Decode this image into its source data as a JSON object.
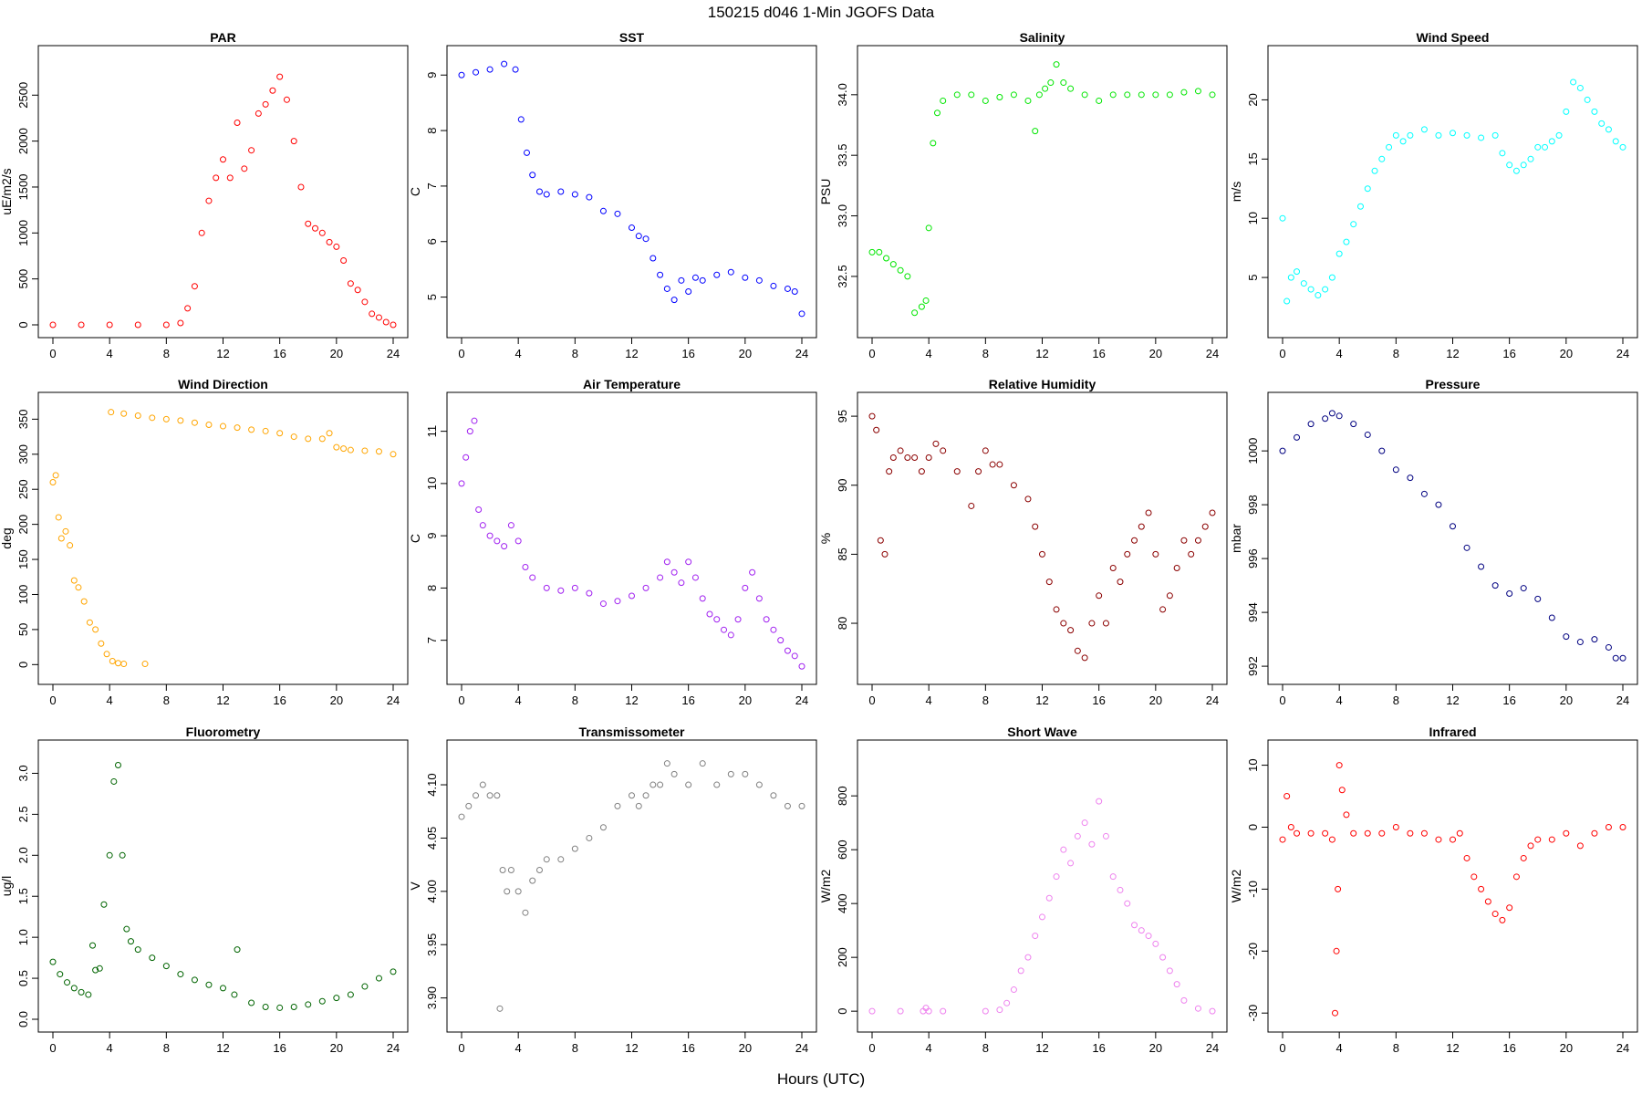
{
  "figure": {
    "title": "150215   d046   1-Min  JGOFS Data",
    "xlabel": "Hours (UTC)"
  },
  "chart_data": [
    {
      "type": "scatter",
      "title": "PAR",
      "ylabel": "uE/m2/s",
      "color": "#ff0000",
      "xlim": [
        0,
        24
      ],
      "ylim": [
        0,
        2900
      ],
      "xticks": [
        0,
        4,
        8,
        12,
        16,
        20,
        24
      ],
      "xtick_labels": [
        "0",
        "4",
        "8",
        "12",
        "16",
        "20",
        "24"
      ],
      "yticks": [
        0,
        500,
        1000,
        1500,
        2000,
        2500
      ],
      "ytick_labels": [
        "0",
        "500",
        "1000",
        "1500",
        "2000",
        "2500"
      ],
      "x": [
        0,
        2,
        4,
        6,
        8,
        9,
        9.5,
        10,
        10.5,
        11,
        11.5,
        12,
        12.5,
        13,
        13.5,
        14,
        14.5,
        15,
        15.5,
        16,
        16.5,
        17,
        17.5,
        18,
        18.5,
        19,
        19.5,
        20,
        20.5,
        21,
        21.5,
        22,
        22.5,
        23,
        23.5,
        24
      ],
      "y": [
        0,
        0,
        0,
        0,
        0,
        20,
        180,
        420,
        1000,
        1350,
        1600,
        1800,
        1600,
        2200,
        1700,
        1900,
        2300,
        2400,
        2550,
        2700,
        2450,
        2000,
        1500,
        1100,
        1050,
        1000,
        900,
        850,
        700,
        450,
        380,
        250,
        120,
        80,
        30,
        0
      ]
    },
    {
      "type": "scatter",
      "title": "SST",
      "ylabel": "C",
      "color": "#0000ff",
      "xlim": [
        0,
        24
      ],
      "ylim": [
        4.5,
        9.3
      ],
      "xticks": [
        0,
        4,
        8,
        12,
        16,
        20,
        24
      ],
      "xtick_labels": [
        "0",
        "4",
        "8",
        "12",
        "16",
        "20",
        "24"
      ],
      "yticks": [
        5,
        6,
        7,
        8,
        9
      ],
      "ytick_labels": [
        "5",
        "6",
        "7",
        "8",
        "9"
      ],
      "x": [
        0,
        1,
        2,
        3,
        3.8,
        4.2,
        4.6,
        5,
        5.5,
        6,
        7,
        8,
        9,
        10,
        11,
        12,
        12.5,
        13,
        13.5,
        14,
        14.5,
        15,
        15.5,
        16,
        16.5,
        17,
        18,
        19,
        20,
        21,
        22,
        23,
        23.5,
        24
      ],
      "y": [
        9.0,
        9.05,
        9.1,
        9.2,
        9.1,
        8.2,
        7.6,
        7.2,
        6.9,
        6.85,
        6.9,
        6.85,
        6.8,
        6.55,
        6.5,
        6.25,
        6.1,
        6.05,
        5.7,
        5.4,
        5.15,
        4.95,
        5.3,
        5.1,
        5.35,
        5.3,
        5.4,
        5.45,
        5.35,
        5.3,
        5.2,
        5.15,
        5.1,
        4.7
      ]
    },
    {
      "type": "scatter",
      "title": "Salinity",
      "ylabel": "PSU",
      "color": "#00e600",
      "xlim": [
        0,
        24
      ],
      "ylim": [
        32.1,
        34.3
      ],
      "xticks": [
        0,
        4,
        8,
        12,
        16,
        20,
        24
      ],
      "xtick_labels": [
        "0",
        "4",
        "8",
        "12",
        "16",
        "20",
        "24"
      ],
      "yticks": [
        32.5,
        33.0,
        33.5,
        34.0
      ],
      "ytick_labels": [
        "32.5",
        "33.0",
        "33.5",
        "34.0"
      ],
      "x": [
        0,
        0.5,
        1,
        1.5,
        2,
        2.5,
        3,
        3.5,
        3.8,
        4,
        4.3,
        4.6,
        5,
        6,
        7,
        8,
        9,
        10,
        11,
        11.5,
        11.8,
        12.2,
        12.6,
        13,
        13.5,
        14,
        15,
        16,
        17,
        18,
        19,
        20,
        21,
        22,
        23,
        24
      ],
      "y": [
        32.7,
        32.7,
        32.65,
        32.6,
        32.55,
        32.5,
        32.2,
        32.25,
        32.3,
        32.9,
        33.6,
        33.85,
        33.95,
        34.0,
        34.0,
        33.95,
        33.98,
        34.0,
        33.95,
        33.7,
        34.0,
        34.05,
        34.1,
        34.25,
        34.1,
        34.05,
        34.0,
        33.95,
        34.0,
        34.0,
        34.0,
        34.0,
        34.0,
        34.02,
        34.03,
        34.0
      ]
    },
    {
      "type": "scatter",
      "title": "Wind Speed",
      "ylabel": "m/s",
      "color": "#00ffff",
      "xlim": [
        0,
        24
      ],
      "ylim": [
        1,
        23.5
      ],
      "xticks": [
        0,
        4,
        8,
        12,
        16,
        20,
        24
      ],
      "xtick_labels": [
        "0",
        "4",
        "8",
        "12",
        "16",
        "20",
        "24"
      ],
      "yticks": [
        5,
        10,
        15,
        20
      ],
      "ytick_labels": [
        "5",
        "10",
        "15",
        "20"
      ],
      "x": [
        0,
        0.3,
        0.6,
        1,
        1.5,
        2,
        2.5,
        3,
        3.5,
        4,
        4.5,
        5,
        5.5,
        6,
        6.5,
        7,
        7.5,
        8,
        8.5,
        9,
        10,
        11,
        12,
        13,
        14,
        15,
        15.5,
        16,
        16.5,
        17,
        17.5,
        18,
        18.5,
        19,
        19.5,
        20,
        20.5,
        21,
        21.5,
        22,
        22.5,
        23,
        23.5,
        24
      ],
      "y": [
        10,
        3,
        5,
        5.5,
        4.5,
        4,
        3.5,
        4,
        5,
        7,
        8,
        9.5,
        11,
        12.5,
        14,
        15,
        16,
        17,
        16.5,
        17,
        17.5,
        17,
        17.2,
        17,
        16.8,
        17,
        15.5,
        14.5,
        14,
        14.5,
        15,
        16,
        16,
        16.5,
        17,
        19,
        21.5,
        21,
        20,
        19,
        18,
        17.5,
        16.5,
        16
      ]
    },
    {
      "type": "scatter",
      "title": "Wind Direction",
      "ylabel": "deg",
      "color": "#ffa500",
      "xlim": [
        0,
        24
      ],
      "ylim": [
        -10,
        370
      ],
      "xticks": [
        0,
        4,
        8,
        12,
        16,
        20,
        24
      ],
      "xtick_labels": [
        "0",
        "4",
        "8",
        "12",
        "16",
        "20",
        "24"
      ],
      "yticks": [
        0,
        50,
        100,
        150,
        200,
        250,
        300,
        350
      ],
      "ytick_labels": [
        "0",
        "50",
        "100",
        "150",
        "200",
        "250",
        "300",
        "350"
      ],
      "x": [
        0,
        0.2,
        0.4,
        0.6,
        0.9,
        1.2,
        1.5,
        1.8,
        2.2,
        2.6,
        3,
        3.4,
        3.8,
        4.2,
        4.6,
        5,
        6.5,
        4.1,
        5,
        6,
        7,
        8,
        9,
        10,
        11,
        12,
        13,
        14,
        15,
        16,
        17,
        18,
        19,
        19.5,
        20,
        20.5,
        21,
        22,
        23,
        24
      ],
      "y": [
        260,
        270,
        210,
        180,
        190,
        170,
        120,
        110,
        90,
        60,
        50,
        30,
        15,
        5,
        2,
        1,
        1,
        360,
        358,
        355,
        352,
        350,
        348,
        345,
        342,
        340,
        338,
        335,
        333,
        330,
        325,
        322,
        322,
        330,
        310,
        308,
        306,
        305,
        304,
        300
      ]
    },
    {
      "type": "scatter",
      "title": "Air Temperature",
      "ylabel": "C",
      "color": "#a020f0",
      "xlim": [
        0,
        24
      ],
      "ylim": [
        6.4,
        11.5
      ],
      "xticks": [
        0,
        4,
        8,
        12,
        16,
        20,
        24
      ],
      "xtick_labels": [
        "0",
        "4",
        "8",
        "12",
        "16",
        "20",
        "24"
      ],
      "yticks": [
        7,
        8,
        9,
        10,
        11
      ],
      "ytick_labels": [
        "7",
        "8",
        "9",
        "10",
        "11"
      ],
      "x": [
        0,
        0.3,
        0.6,
        0.9,
        1.2,
        1.5,
        2,
        2.5,
        3,
        3.5,
        4,
        4.5,
        5,
        6,
        7,
        8,
        9,
        10,
        11,
        12,
        13,
        14,
        14.5,
        15,
        15.5,
        16,
        16.5,
        17,
        17.5,
        18,
        18.5,
        19,
        19.5,
        20,
        20.5,
        21,
        21.5,
        22,
        22.5,
        23,
        23.5,
        24
      ],
      "y": [
        10,
        10.5,
        11,
        11.2,
        9.5,
        9.2,
        9.0,
        8.9,
        8.8,
        9.2,
        8.9,
        8.4,
        8.2,
        8.0,
        7.95,
        8.0,
        7.9,
        7.7,
        7.75,
        7.85,
        8.0,
        8.2,
        8.5,
        8.3,
        8.1,
        8.5,
        8.2,
        7.8,
        7.5,
        7.4,
        7.2,
        7.1,
        7.4,
        8.0,
        8.3,
        7.8,
        7.4,
        7.2,
        7.0,
        6.8,
        6.7,
        6.5
      ]
    },
    {
      "type": "scatter",
      "title": "Relative Humidity",
      "ylabel": "%",
      "color": "#8b0000",
      "xlim": [
        0,
        24
      ],
      "ylim": [
        76.5,
        95.8
      ],
      "xticks": [
        0,
        4,
        8,
        12,
        16,
        20,
        24
      ],
      "xtick_labels": [
        "0",
        "4",
        "8",
        "12",
        "16",
        "20",
        "24"
      ],
      "yticks": [
        80,
        85,
        90,
        95
      ],
      "ytick_labels": [
        "80",
        "85",
        "90",
        "95"
      ],
      "x": [
        0,
        0.3,
        0.6,
        0.9,
        1.2,
        1.5,
        2,
        2.5,
        3,
        3.5,
        4,
        4.5,
        5,
        6,
        7,
        7.5,
        8,
        8.5,
        9,
        10,
        11,
        11.5,
        12,
        12.5,
        13,
        13.5,
        14,
        14.5,
        15,
        15.5,
        16,
        16.5,
        17,
        17.5,
        18,
        18.5,
        19,
        19.5,
        20,
        20.5,
        21,
        21.5,
        22,
        22.5,
        23,
        23.5,
        24
      ],
      "y": [
        95,
        94,
        86,
        85,
        91,
        92,
        92.5,
        92,
        92,
        91,
        92,
        93,
        92.5,
        91,
        88.5,
        91,
        92.5,
        91.5,
        91.5,
        90,
        89,
        87,
        85,
        83,
        81,
        80,
        79.5,
        78,
        77.5,
        80,
        82,
        80,
        84,
        83,
        85,
        86,
        87,
        88,
        85,
        81,
        82,
        84,
        86,
        85,
        86,
        87,
        88
      ]
    },
    {
      "type": "scatter",
      "title": "Pressure",
      "ylabel": "mbar",
      "color": "#000080",
      "xlim": [
        0,
        24
      ],
      "ylim": [
        991.8,
        1001.7
      ],
      "xticks": [
        0,
        4,
        8,
        12,
        16,
        20,
        24
      ],
      "xtick_labels": [
        "0",
        "4",
        "8",
        "12",
        "16",
        "20",
        "24"
      ],
      "yticks": [
        992,
        994,
        996,
        998,
        1000
      ],
      "ytick_labels": [
        "992",
        "994",
        "996",
        "998",
        "1000"
      ],
      "x": [
        0,
        1,
        2,
        3,
        3.5,
        4,
        5,
        6,
        7,
        8,
        9,
        10,
        11,
        12,
        13,
        14,
        15,
        16,
        17,
        18,
        19,
        20,
        21,
        22,
        23,
        23.5,
        24
      ],
      "y": [
        1000,
        1000.5,
        1001,
        1001.2,
        1001.4,
        1001.3,
        1001,
        1000.6,
        1000,
        999.3,
        999,
        998.4,
        998,
        997.2,
        996.4,
        995.7,
        995,
        994.7,
        994.9,
        994.5,
        993.8,
        993.1,
        992.9,
        993,
        992.7,
        992.3,
        992.3
      ]
    },
    {
      "type": "scatter",
      "title": "Fluorometry",
      "ylabel": "ug/l",
      "color": "#006400",
      "xlim": [
        0,
        24
      ],
      "ylim": [
        0,
        3.25
      ],
      "xticks": [
        0,
        4,
        8,
        12,
        16,
        20,
        24
      ],
      "xtick_labels": [
        "0",
        "4",
        "8",
        "12",
        "16",
        "20",
        "24"
      ],
      "yticks": [
        0.0,
        0.5,
        1.0,
        1.5,
        2.0,
        2.5,
        3.0
      ],
      "ytick_labels": [
        "0.0",
        "0.5",
        "1.0",
        "1.5",
        "2.0",
        "2.5",
        "3.0"
      ],
      "x": [
        0,
        0.5,
        1,
        1.5,
        2,
        2.5,
        2.8,
        3.0,
        3.3,
        3.6,
        4.0,
        4.3,
        4.6,
        4.9,
        5.2,
        5.5,
        6,
        7,
        8,
        9,
        10,
        11,
        12,
        12.8,
        13,
        14,
        15,
        16,
        17,
        18,
        19,
        20,
        21,
        22,
        23,
        24
      ],
      "y": [
        0.7,
        0.55,
        0.45,
        0.38,
        0.33,
        0.3,
        0.9,
        0.6,
        0.62,
        1.4,
        2.0,
        2.9,
        3.1,
        2.0,
        1.1,
        0.95,
        0.85,
        0.75,
        0.65,
        0.55,
        0.48,
        0.42,
        0.38,
        0.3,
        0.85,
        0.2,
        0.15,
        0.14,
        0.15,
        0.18,
        0.22,
        0.26,
        0.3,
        0.4,
        0.5,
        0.58
      ]
    },
    {
      "type": "scatter",
      "title": "Transmissometer",
      "ylabel": "V",
      "color": "#808080",
      "xlim": [
        0,
        24
      ],
      "ylim": [
        3.88,
        4.13
      ],
      "xticks": [
        0,
        4,
        8,
        12,
        16,
        20,
        24
      ],
      "xtick_labels": [
        "0",
        "4",
        "8",
        "12",
        "16",
        "20",
        "24"
      ],
      "yticks": [
        3.9,
        3.95,
        4.0,
        4.05,
        4.1
      ],
      "ytick_labels": [
        "3.90",
        "3.95",
        "4.00",
        "4.05",
        "4.10"
      ],
      "x": [
        0,
        0.5,
        1,
        1.5,
        2,
        2.5,
        2.7,
        2.9,
        3.2,
        3.5,
        4,
        4.5,
        5,
        5.5,
        6,
        7,
        8,
        9,
        10,
        11,
        12,
        12.5,
        13,
        13.5,
        14,
        14.5,
        15,
        16,
        17,
        18,
        19,
        20,
        21,
        22,
        23,
        24
      ],
      "y": [
        4.07,
        4.08,
        4.09,
        4.1,
        4.09,
        4.09,
        3.89,
        4.02,
        4.0,
        4.02,
        4.0,
        3.98,
        4.01,
        4.02,
        4.03,
        4.03,
        4.04,
        4.05,
        4.06,
        4.08,
        4.09,
        4.08,
        4.09,
        4.1,
        4.1,
        4.12,
        4.11,
        4.1,
        4.12,
        4.1,
        4.11,
        4.11,
        4.1,
        4.09,
        4.08,
        4.08
      ]
    },
    {
      "type": "scatter",
      "title": "Short Wave",
      "ylabel": "W/m2",
      "color": "#ee82ee",
      "xlim": [
        0,
        24
      ],
      "ylim": [
        -30,
        960
      ],
      "xticks": [
        0,
        4,
        8,
        12,
        16,
        20,
        24
      ],
      "xtick_labels": [
        "0",
        "4",
        "8",
        "12",
        "16",
        "20",
        "24"
      ],
      "yticks": [
        0,
        200,
        400,
        600,
        800
      ],
      "ytick_labels": [
        "0",
        "200",
        "400",
        "600",
        "800"
      ],
      "x": [
        0,
        2,
        3.6,
        3.8,
        4.0,
        5,
        8,
        9,
        9.5,
        10,
        10.5,
        11,
        11.5,
        12,
        12.5,
        13,
        13.5,
        14,
        14.5,
        15,
        15.5,
        16,
        16.5,
        17,
        17.5,
        18,
        18.5,
        19,
        19.5,
        20,
        20.5,
        21,
        21.5,
        22,
        23,
        24
      ],
      "y": [
        0,
        0,
        0,
        12,
        0,
        0,
        0,
        5,
        30,
        80,
        150,
        200,
        280,
        350,
        420,
        500,
        600,
        550,
        650,
        700,
        620,
        780,
        650,
        500,
        450,
        400,
        320,
        300,
        280,
        250,
        200,
        150,
        100,
        40,
        10,
        0
      ]
    },
    {
      "type": "scatter",
      "title": "Infrared",
      "ylabel": "W/m2",
      "color": "#ff0000",
      "xlim": [
        0,
        24
      ],
      "ylim": [
        -31,
        12
      ],
      "xticks": [
        0,
        4,
        8,
        12,
        16,
        20,
        24
      ],
      "xtick_labels": [
        "0",
        "4",
        "8",
        "12",
        "16",
        "20",
        "24"
      ],
      "yticks": [
        -30,
        -20,
        -10,
        0,
        10
      ],
      "ytick_labels": [
        "-30",
        "-20",
        "-10",
        "0",
        "10"
      ],
      "x": [
        0,
        0.3,
        0.6,
        1,
        2,
        3,
        3.5,
        3.7,
        3.8,
        3.9,
        4.0,
        4.2,
        4.5,
        5,
        6,
        7,
        8,
        9,
        10,
        11,
        12,
        12.5,
        13,
        13.5,
        14,
        14.5,
        15,
        15.5,
        16,
        16.5,
        17,
        17.5,
        18,
        19,
        20,
        21,
        22,
        23,
        24
      ],
      "y": [
        -2,
        5,
        0,
        -1,
        -1,
        -1,
        -2,
        -30,
        -20,
        -10,
        10,
        6,
        2,
        -1,
        -1,
        -1,
        0,
        -1,
        -1,
        -2,
        -2,
        -1,
        -5,
        -8,
        -10,
        -12,
        -14,
        -15,
        -13,
        -8,
        -5,
        -3,
        -2,
        -2,
        -1,
        -3,
        -1,
        0,
        0
      ]
    }
  ]
}
